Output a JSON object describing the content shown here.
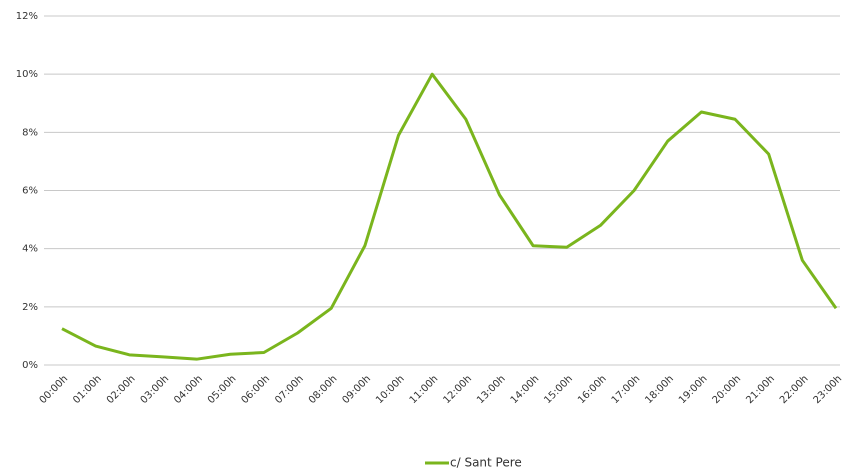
{
  "chart_data": {
    "type": "line",
    "categories": [
      "00:00h",
      "01:00h",
      "02:00h",
      "03:00h",
      "04:00h",
      "05:00h",
      "06:00h",
      "07:00h",
      "08:00h",
      "09:00h",
      "10:00h",
      "11:00h",
      "12:00h",
      "13:00h",
      "14:00h",
      "15:00h",
      "16:00h",
      "17:00h",
      "18:00h",
      "19:00h",
      "20:00h",
      "21:00h",
      "22:00h",
      "23:00h"
    ],
    "series": [
      {
        "name": "c/ Sant Pere",
        "color": "#7ab51d",
        "values": [
          1.25,
          0.65,
          0.35,
          0.28,
          0.2,
          0.37,
          0.43,
          1.1,
          1.95,
          4.1,
          7.9,
          10.0,
          8.45,
          5.85,
          4.1,
          4.05,
          4.8,
          6.0,
          7.7,
          8.7,
          8.45,
          7.25,
          3.6,
          1.95
        ]
      }
    ],
    "ylim": [
      0,
      12
    ],
    "yticks": [
      {
        "value": 0,
        "label": "0%"
      },
      {
        "value": 2,
        "label": "2%"
      },
      {
        "value": 4,
        "label": "4%"
      },
      {
        "value": 6,
        "label": "6%"
      },
      {
        "value": 8,
        "label": "8%"
      },
      {
        "value": 10,
        "label": "10%"
      },
      {
        "value": 12,
        "label": "12%"
      }
    ],
    "grid": true,
    "legend": "bottom"
  }
}
